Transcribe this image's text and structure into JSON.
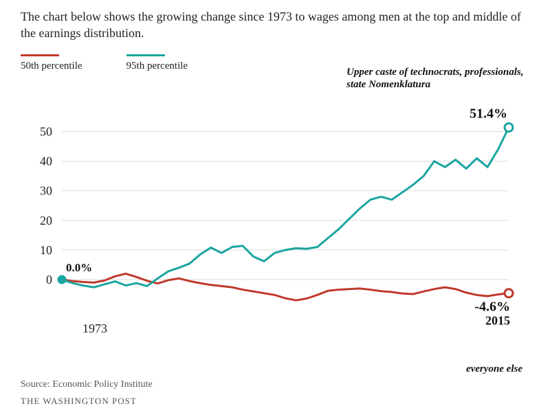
{
  "title": "The chart below shows the growing change since 1973 to wages among men at the top and middle of the earnings distribution.",
  "legend": {
    "p50": {
      "label": "50th percentile",
      "color": "#c0392b",
      "line_width": 3
    },
    "p95": {
      "label": "95th percentile",
      "color": "#1ba5a0",
      "line_width": 3
    }
  },
  "annotations": {
    "upper": "Upper caste of technocrats, professionals, state Nomenklatura",
    "else": "everyone else"
  },
  "chart": {
    "type": "line",
    "background_color": "#ffffff",
    "grid_color": "#d9d9d9",
    "axis_font_size": 18,
    "x": {
      "min": 1973,
      "max": 2015,
      "ticks": [
        1973,
        2015
      ]
    },
    "y": {
      "min": -10,
      "max": 55,
      "ticks": [
        0,
        10,
        20,
        30,
        40,
        50
      ]
    },
    "start_label": "0.0%",
    "end_label_p95": "51.4%",
    "end_label_p50": "-4.6%",
    "series": {
      "p50": {
        "color": "#c0392b",
        "width": 3,
        "marker_end": {
          "shape": "circle-open",
          "size": 6
        },
        "data": [
          [
            1973,
            0.0
          ],
          [
            1974,
            -0.5
          ],
          [
            1975,
            -0.8
          ],
          [
            1976,
            -1.0
          ],
          [
            1977,
            -0.3
          ],
          [
            1978,
            1.1
          ],
          [
            1979,
            2.0
          ],
          [
            1980,
            0.9
          ],
          [
            1981,
            -0.4
          ],
          [
            1982,
            -1.3
          ],
          [
            1983,
            -0.2
          ],
          [
            1984,
            0.4
          ],
          [
            1985,
            -0.5
          ],
          [
            1986,
            -1.2
          ],
          [
            1987,
            -1.8
          ],
          [
            1988,
            -2.2
          ],
          [
            1989,
            -2.6
          ],
          [
            1990,
            -3.4
          ],
          [
            1991,
            -4.0
          ],
          [
            1992,
            -4.6
          ],
          [
            1993,
            -5.2
          ],
          [
            1994,
            -6.3
          ],
          [
            1995,
            -7.0
          ],
          [
            1996,
            -6.4
          ],
          [
            1997,
            -5.2
          ],
          [
            1998,
            -3.8
          ],
          [
            1999,
            -3.4
          ],
          [
            2000,
            -3.2
          ],
          [
            2001,
            -3.0
          ],
          [
            2002,
            -3.4
          ],
          [
            2003,
            -3.9
          ],
          [
            2004,
            -4.2
          ],
          [
            2005,
            -4.7
          ],
          [
            2006,
            -4.9
          ],
          [
            2007,
            -4.0
          ],
          [
            2008,
            -3.2
          ],
          [
            2009,
            -2.6
          ],
          [
            2010,
            -3.2
          ],
          [
            2011,
            -4.4
          ],
          [
            2012,
            -5.2
          ],
          [
            2013,
            -5.6
          ],
          [
            2014,
            -5.0
          ],
          [
            2015,
            -4.6
          ]
        ]
      },
      "p95": {
        "color": "#1ba5a0",
        "width": 3,
        "marker_start": {
          "shape": "circle",
          "size": 6
        },
        "marker_end": {
          "shape": "circle-open",
          "size": 6
        },
        "data": [
          [
            1973,
            0.0
          ],
          [
            1974,
            -1.2
          ],
          [
            1975,
            -2.0
          ],
          [
            1976,
            -2.6
          ],
          [
            1977,
            -1.6
          ],
          [
            1978,
            -0.6
          ],
          [
            1979,
            -2.0
          ],
          [
            1980,
            -1.2
          ],
          [
            1981,
            -2.2
          ],
          [
            1982,
            0.4
          ],
          [
            1983,
            2.8
          ],
          [
            1984,
            4.0
          ],
          [
            1985,
            5.4
          ],
          [
            1986,
            8.5
          ],
          [
            1987,
            10.8
          ],
          [
            1988,
            9.0
          ],
          [
            1989,
            11.0
          ],
          [
            1990,
            11.4
          ],
          [
            1991,
            7.8
          ],
          [
            1992,
            6.2
          ],
          [
            1993,
            9.0
          ],
          [
            1994,
            10.0
          ],
          [
            1995,
            10.6
          ],
          [
            1996,
            10.4
          ],
          [
            1997,
            11.0
          ],
          [
            1998,
            14.0
          ],
          [
            1999,
            17.0
          ],
          [
            2000,
            20.5
          ],
          [
            2001,
            24.0
          ],
          [
            2002,
            27.0
          ],
          [
            2003,
            28.0
          ],
          [
            2004,
            27.0
          ],
          [
            2005,
            29.5
          ],
          [
            2006,
            32.0
          ],
          [
            2007,
            35.0
          ],
          [
            2008,
            40.0
          ],
          [
            2009,
            38.0
          ],
          [
            2010,
            40.5
          ],
          [
            2011,
            37.5
          ],
          [
            2012,
            41.0
          ],
          [
            2013,
            38.0
          ],
          [
            2014,
            44.0
          ],
          [
            2015,
            51.4
          ]
        ]
      }
    }
  },
  "footer": {
    "source": "Source: Economic Policy Institute",
    "publisher": "THE WASHINGTON POST"
  }
}
